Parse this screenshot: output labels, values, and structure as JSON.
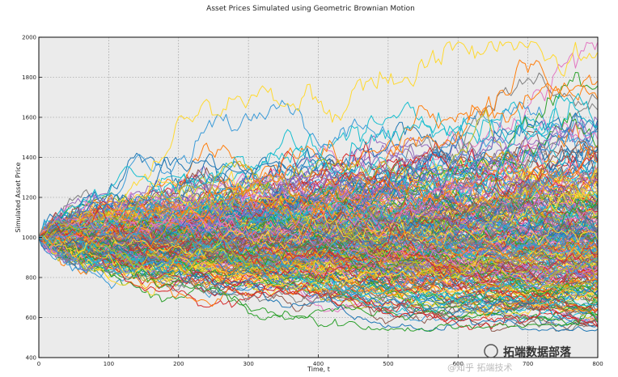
{
  "chart_data": {
    "type": "line",
    "title": "Asset Prices Simulated using Geometric Brownian Motion",
    "xlabel": "Time, t",
    "ylabel": "Simulated Asset Price",
    "xlim": [
      0,
      800
    ],
    "ylim": [
      400,
      2000
    ],
    "x_ticks": [
      "0",
      "100",
      "200",
      "300",
      "400",
      "500",
      "600",
      "700",
      "800"
    ],
    "y_ticks": [
      "400",
      "600",
      "800",
      "1000",
      "1200",
      "1400",
      "1600",
      "1800",
      "2000"
    ],
    "grid": true,
    "background": "#ebebeb",
    "initial_price": 1000,
    "num_steps": 800,
    "num_paths_approx": 300,
    "final_price_range": [
      540,
      1970
    ],
    "palette": [
      "#1f77b4",
      "#2ca02c",
      "#d62728",
      "#9467bd",
      "#17becf",
      "#e377c2",
      "#ffd92f",
      "#ff7f0e",
      "#8c564b",
      "#7f7f7f",
      "#bcbd22",
      "#3a9bd8"
    ]
  },
  "watermark": {
    "brand": "拓端数据部落",
    "faint": "@知乎 拓端技术"
  }
}
